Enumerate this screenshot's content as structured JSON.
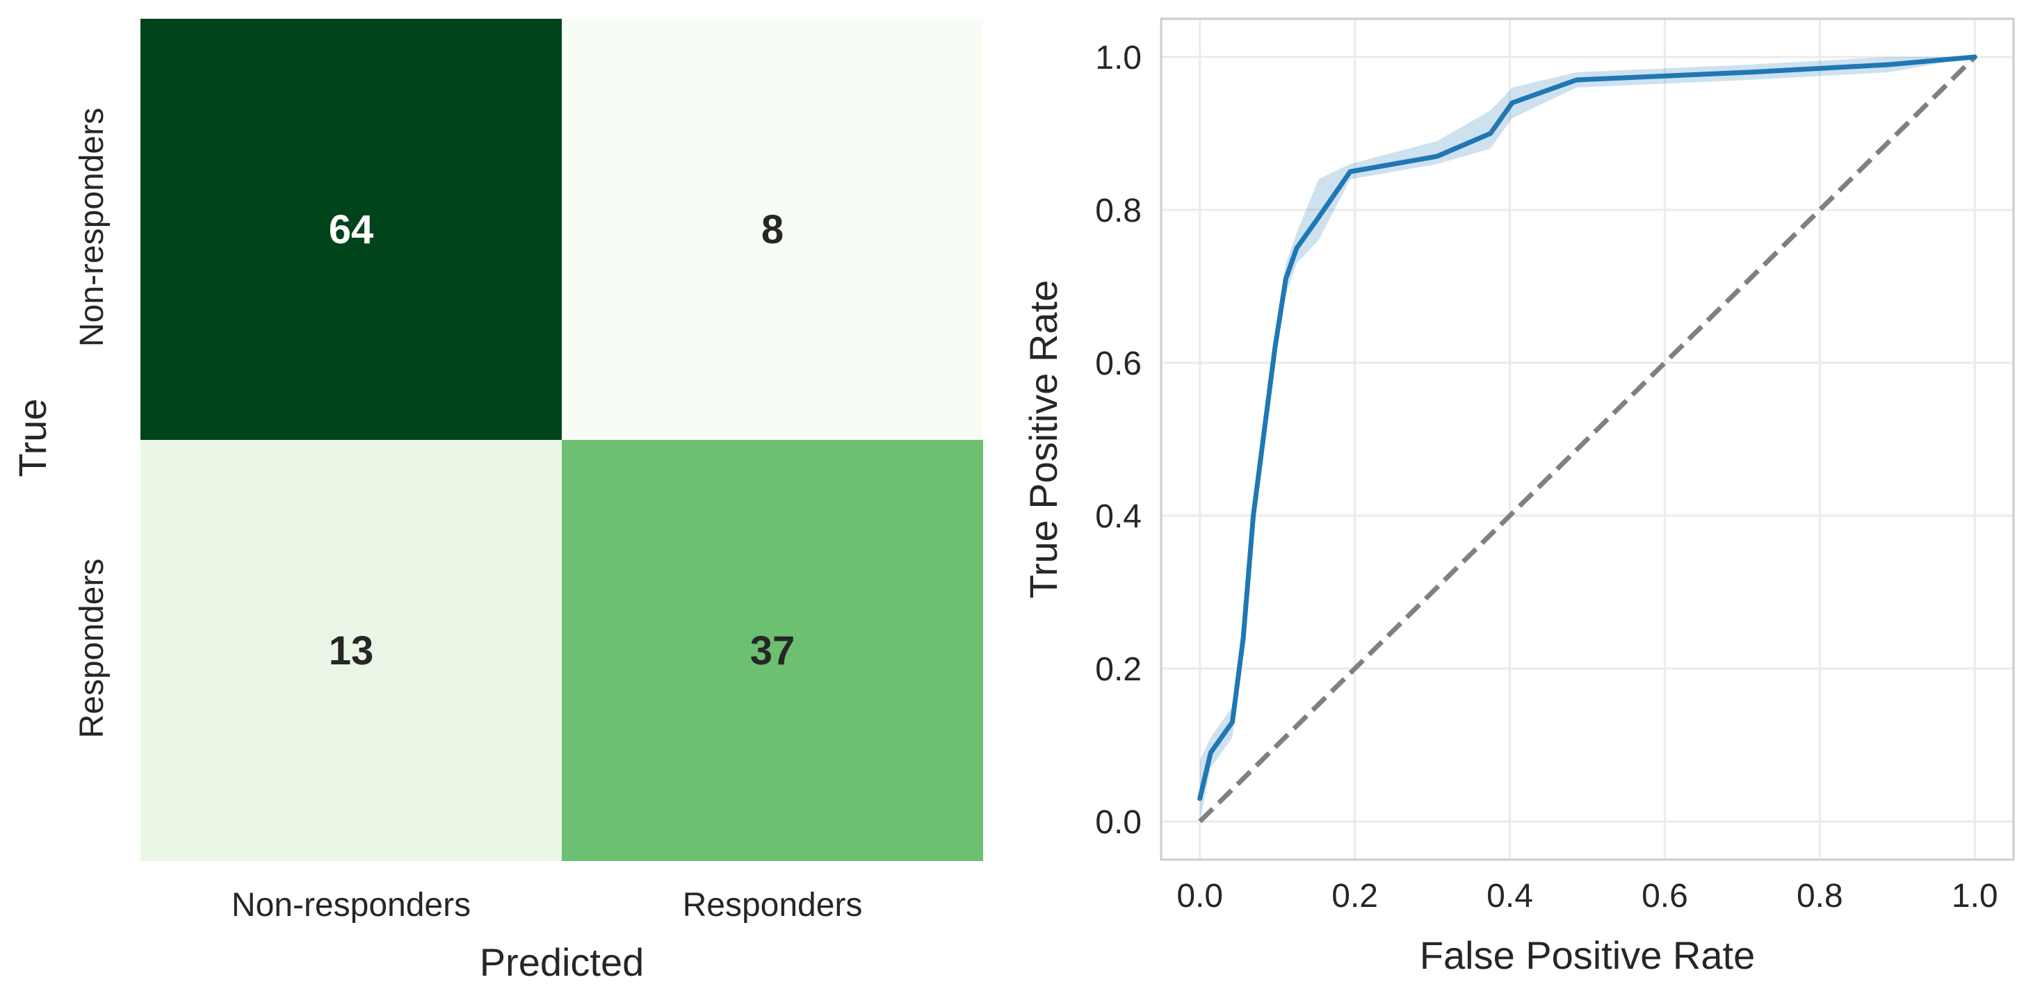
{
  "chart_data": [
    {
      "type": "heatmap",
      "title": "",
      "xlabel": "Predicted",
      "ylabel": "True",
      "x_categories": [
        "Non-responders",
        "Responders"
      ],
      "y_categories": [
        "Non-responders",
        "Responders"
      ],
      "values": [
        [
          64,
          8
        ],
        [
          13,
          37
        ]
      ],
      "colormap": "Greens",
      "color_low": "#f7fcf5",
      "color_high": "#00441b",
      "annotated": true,
      "colorbar": false
    },
    {
      "type": "line",
      "title": "",
      "xlabel": "False Positive Rate",
      "ylabel": "True Positive Rate",
      "xlim": [
        -0.05,
        1.05
      ],
      "ylim": [
        -0.05,
        1.05
      ],
      "x_ticks": [
        "0.0",
        "0.2",
        "0.4",
        "0.6",
        "0.8",
        "1.0"
      ],
      "y_ticks": [
        "0.0",
        "0.2",
        "0.4",
        "0.6",
        "0.8",
        "1.0"
      ],
      "grid": true,
      "legend": "none",
      "series": [
        {
          "color": "#1f77b4",
          "style": "solid",
          "x": [
            0.0,
            0.014,
            0.042,
            0.056,
            0.069,
            0.083,
            0.097,
            0.111,
            0.125,
            0.153,
            0.194,
            0.306,
            0.375,
            0.403,
            0.486,
            0.597,
            0.708,
            0.889,
            1.0
          ],
          "y": [
            0.03,
            0.09,
            0.13,
            0.24,
            0.4,
            0.51,
            0.62,
            0.71,
            0.75,
            0.79,
            0.85,
            0.87,
            0.9,
            0.94,
            0.97,
            0.975,
            0.98,
            0.99,
            1.0
          ],
          "band_lower": [
            0.0,
            0.07,
            0.11,
            0.22,
            0.38,
            0.49,
            0.6,
            0.69,
            0.73,
            0.76,
            0.84,
            0.86,
            0.88,
            0.92,
            0.96,
            0.965,
            0.97,
            0.98,
            1.0
          ],
          "band_upper": [
            0.08,
            0.11,
            0.15,
            0.26,
            0.42,
            0.53,
            0.64,
            0.73,
            0.77,
            0.84,
            0.86,
            0.89,
            0.93,
            0.96,
            0.98,
            0.985,
            0.99,
            1.0,
            1.0
          ]
        },
        {
          "color": "#808080",
          "style": "dashed",
          "x": [
            0,
            1
          ],
          "y": [
            0,
            1
          ]
        }
      ]
    }
  ]
}
